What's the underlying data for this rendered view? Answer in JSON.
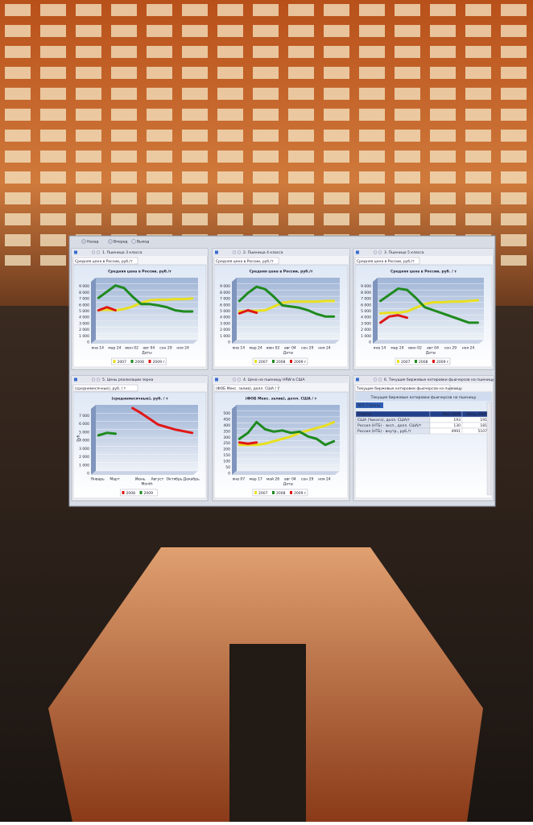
{
  "toolbar": {
    "items": [
      "Назад",
      "Вперед",
      "Выход"
    ]
  },
  "panels": [
    {
      "title": "1. Пшеница 3 класса",
      "tab": "Средняя цена в России, руб./т"
    },
    {
      "title": "2. Пшеница 4 класса",
      "tab": "Средняя цена в России, руб./т"
    },
    {
      "title": "3. Пшеница 5 класса",
      "tab": "Средняя цена в России, руб./т"
    },
    {
      "title": "5. Цены реализации зерна",
      "tab": "(среднемесячные), руб. / т"
    },
    {
      "title": "4. Цена на пшеницу HRW в США",
      "tab": "(ФОБ Мекс. залив), долл. США / т"
    },
    {
      "title": "6. Текущие биржевые котировки фьючерсов на пшеницу",
      "tab": "Текущие биржевые котировки фьючерсов на пшеницу"
    }
  ],
  "chart_data": [
    {
      "type": "line",
      "title": "Средняя цена в России, руб./т",
      "x_label": "Даты",
      "categories": [
        "янв 14",
        null,
        "мар 24",
        null,
        "июн 02",
        null,
        "авг 04",
        null,
        "сен 29",
        null,
        "ноя 24",
        null
      ],
      "ylim": [
        0,
        10000
      ],
      "yticks": [
        0,
        {
          "value": 1000,
          "label": "1 000"
        },
        {
          "value": 2000,
          "label": "2 000"
        },
        {
          "value": 3000,
          "label": "3 000"
        },
        {
          "value": 4000,
          "label": "4 000"
        },
        {
          "value": 5000,
          "label": "5 000"
        },
        {
          "value": 6000,
          "label": "6 000"
        },
        {
          "value": 7000,
          "label": "7 000"
        },
        {
          "value": 8000,
          "label": "8 000"
        },
        {
          "value": 9000,
          "label": "9 000"
        }
      ],
      "series": [
        {
          "name": "2007",
          "color": "#e8e020",
          "values": [
            5000,
            5100,
            5000,
            5200,
            5600,
            6200,
            6600,
            6700,
            6700,
            6800,
            6800,
            6900
          ]
        },
        {
          "name": "2008",
          "color": "#1f8a1f",
          "values": [
            7000,
            8000,
            9000,
            8600,
            7200,
            6000,
            6000,
            5800,
            5500,
            5000,
            4800,
            4800
          ]
        },
        {
          "name": "2009 г.",
          "color": "#e01818",
          "values": [
            5000,
            5500,
            5000,
            null,
            null,
            null,
            null,
            null,
            null,
            null,
            null,
            null
          ]
        }
      ]
    },
    {
      "type": "line",
      "title": "Средняя цена в России, руб./т",
      "x_label": "Даты",
      "categories": [
        "янв 14",
        null,
        "мар 24",
        null,
        "июн 02",
        null,
        "авг 04",
        null,
        "сен 29",
        null,
        "ноя 24",
        null
      ],
      "ylim": [
        0,
        10000
      ],
      "yticks": [
        0,
        {
          "value": 1000,
          "label": "1 000"
        },
        {
          "value": 2000,
          "label": "2 000"
        },
        {
          "value": 3000,
          "label": "3 000"
        },
        {
          "value": 4000,
          "label": "4 000"
        },
        {
          "value": 5000,
          "label": "5 000"
        },
        {
          "value": 6000,
          "label": "6 000"
        },
        {
          "value": 7000,
          "label": "7 000"
        },
        {
          "value": 8000,
          "label": "8 000"
        },
        {
          "value": 9000,
          "label": "9 000"
        }
      ],
      "series": [
        {
          "name": "2007",
          "color": "#e8e020",
          "values": [
            4800,
            4900,
            4900,
            5000,
            5600,
            6200,
            6400,
            6400,
            6400,
            6400,
            6500,
            6500
          ]
        },
        {
          "name": "2008",
          "color": "#1f8a1f",
          "values": [
            6500,
            7800,
            8800,
            8400,
            7200,
            5800,
            5600,
            5400,
            5000,
            4400,
            4000,
            4000
          ]
        },
        {
          "name": "2009 г.",
          "color": "#e01818",
          "values": [
            4500,
            5000,
            4600,
            null,
            null,
            null,
            null,
            null,
            null,
            null,
            null,
            null
          ]
        }
      ]
    },
    {
      "type": "line",
      "title": "Средняя цена в России, руб. / т",
      "x_label": "Даты",
      "categories": [
        "янв 14",
        null,
        "мар 24",
        null,
        "июн 02",
        null,
        "авг 04",
        null,
        "сен 29",
        null,
        "ноя 24",
        null
      ],
      "ylim": [
        0,
        10000
      ],
      "yticks": [
        0,
        {
          "value": 1000,
          "label": "1 000"
        },
        {
          "value": 2000,
          "label": "2 000"
        },
        {
          "value": 3000,
          "label": "3 000"
        },
        {
          "value": 4000,
          "label": "4 000"
        },
        {
          "value": 5000,
          "label": "5 000"
        },
        {
          "value": 6000,
          "label": "6 000"
        },
        {
          "value": 7000,
          "label": "7 000"
        },
        {
          "value": 8000,
          "label": "8 000"
        },
        {
          "value": 9000,
          "label": "9 000"
        }
      ],
      "series": [
        {
          "name": "2007",
          "color": "#e8e020",
          "values": [
            4500,
            4600,
            4600,
            4800,
            5400,
            6000,
            6300,
            6300,
            6400,
            6400,
            6500,
            6600
          ]
        },
        {
          "name": "2008",
          "color": "#1f8a1f",
          "values": [
            6500,
            7500,
            8500,
            8300,
            7000,
            5500,
            5000,
            4500,
            4000,
            3500,
            3000,
            3000
          ]
        },
        {
          "name": "2009 г.",
          "color": "#e01818",
          "values": [
            3000,
            4000,
            4200,
            3800,
            null,
            null,
            null,
            null,
            null,
            null,
            null,
            null
          ]
        }
      ]
    },
    {
      "type": "line",
      "title": "(среднемесячные), руб. / т",
      "x_label": "Month",
      "y_label": "Руб.",
      "categories": [
        "Январь",
        null,
        "Март",
        null,
        null,
        "Июнь",
        null,
        "Август",
        null,
        "Октябрь",
        null,
        "Декабрь"
      ],
      "ylim": [
        0,
        8000
      ],
      "yticks": [
        0,
        {
          "value": 1000,
          "label": "1 000"
        },
        {
          "value": 2000,
          "label": "2 000"
        },
        {
          "value": 3000,
          "label": "3 000"
        },
        {
          "value": 4000,
          "label": "4 000"
        },
        {
          "value": 5000,
          "label": "5 000"
        },
        {
          "value": 6000,
          "label": "6 000"
        },
        {
          "value": 7000,
          "label": "7 000"
        }
      ],
      "series": [
        {
          "name": "2008",
          "color": "#e01818",
          "values": [
            null,
            null,
            null,
            null,
            7800,
            7200,
            6500,
            5800,
            5500,
            5200,
            5000,
            4800
          ]
        },
        {
          "name": "2009",
          "color": "#1f8a1f",
          "values": [
            4500,
            4800,
            4700,
            null,
            null,
            null,
            null,
            null,
            null,
            null,
            null,
            null
          ]
        }
      ]
    },
    {
      "type": "line",
      "title": "(ФОБ Мекс. залив), долл. США / т",
      "x_label": "Даты",
      "categories": [
        "янв 07",
        null,
        "мар 17",
        null,
        "май 26",
        null,
        "авг 04",
        null,
        "сен 29",
        null,
        "ноя 24",
        null
      ],
      "ylim": [
        0,
        550
      ],
      "yticks": [
        0,
        50,
        100,
        150,
        200,
        250,
        300,
        350,
        400,
        450,
        500
      ],
      "series": [
        {
          "name": "2007",
          "color": "#e8e020",
          "values": [
            230,
            230,
            230,
            240,
            260,
            280,
            300,
            330,
            350,
            370,
            390,
            420
          ]
        },
        {
          "name": "2008",
          "color": "#1f8a1f",
          "values": [
            280,
            330,
            420,
            360,
            340,
            350,
            330,
            340,
            300,
            280,
            230,
            260
          ]
        },
        {
          "name": "2009 г.",
          "color": "#e01818",
          "values": [
            250,
            240,
            250,
            null,
            null,
            null,
            null,
            null,
            null,
            null,
            null,
            null
          ]
        }
      ]
    }
  ],
  "table": {
    "title": "Текущие биржевые котировки фьючерсов на пшеницу",
    "filter": "ВСЕ Страны",
    "columns": [
      "Страна",
      "Мая 2009",
      "Июль 2009"
    ],
    "rows": [
      [
        "США (Чикаго), долл. США/т",
        193,
        191
      ],
      [
        "Россия (НТБ) - эксп., долл. США/т",
        130,
        181
      ],
      [
        "Россия (НТБ) - внутр., руб./т",
        4991,
        5107
      ]
    ]
  }
}
